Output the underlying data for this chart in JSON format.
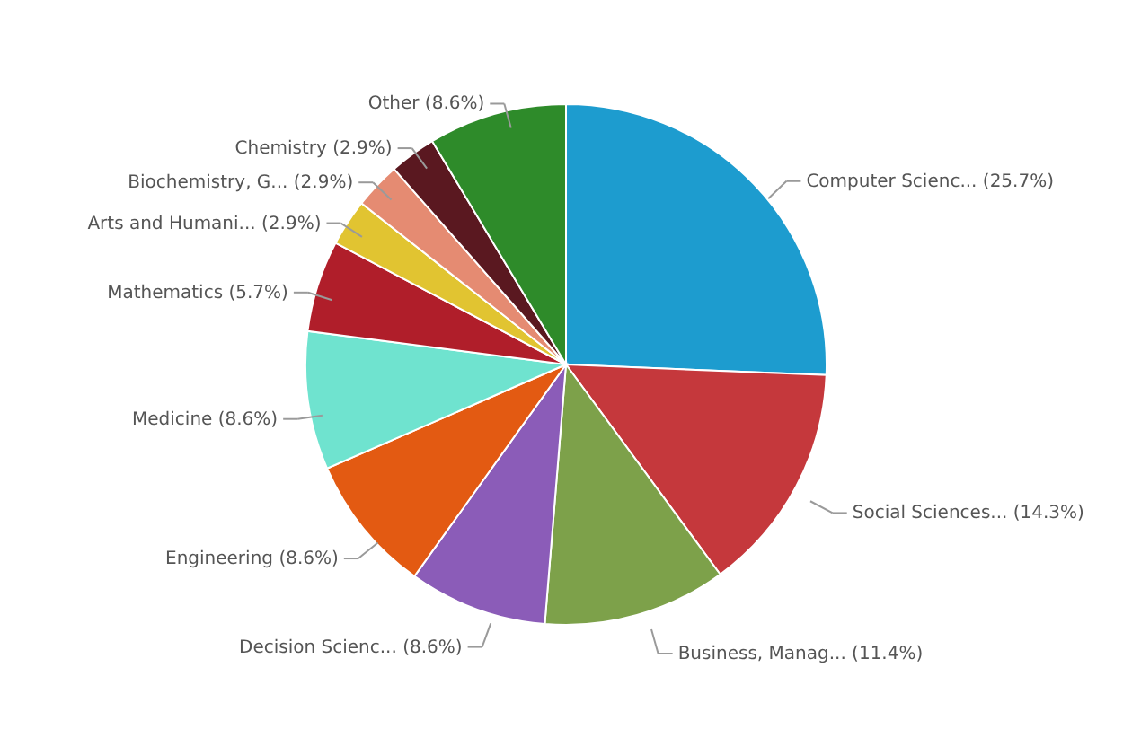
{
  "chart_data": {
    "type": "pie",
    "categories": [
      "Computer Scienc... (25.7%)",
      "Social Sciences... (14.3%)",
      "Business, Manag... (11.4%)",
      "Decision Scienc... (8.6%)",
      "Engineering (8.6%)",
      "Medicine (8.6%)",
      "Mathematics (5.7%)",
      "Arts and Humani... (2.9%)",
      "Biochemistry, G... (2.9%)",
      "Chemistry (2.9%)",
      "Other (8.6%)"
    ],
    "values": [
      25.7,
      14.3,
      11.4,
      8.6,
      8.6,
      8.6,
      5.7,
      2.9,
      2.9,
      2.9,
      8.6
    ],
    "colors": [
      "#1d9ccf",
      "#c5383c",
      "#7da14a",
      "#8b5cb8",
      "#e35a12",
      "#6fe3cf",
      "#b01e2a",
      "#e1c431",
      "#e58b72",
      "#5a1820",
      "#2e8b2a"
    ],
    "legend": false
  }
}
